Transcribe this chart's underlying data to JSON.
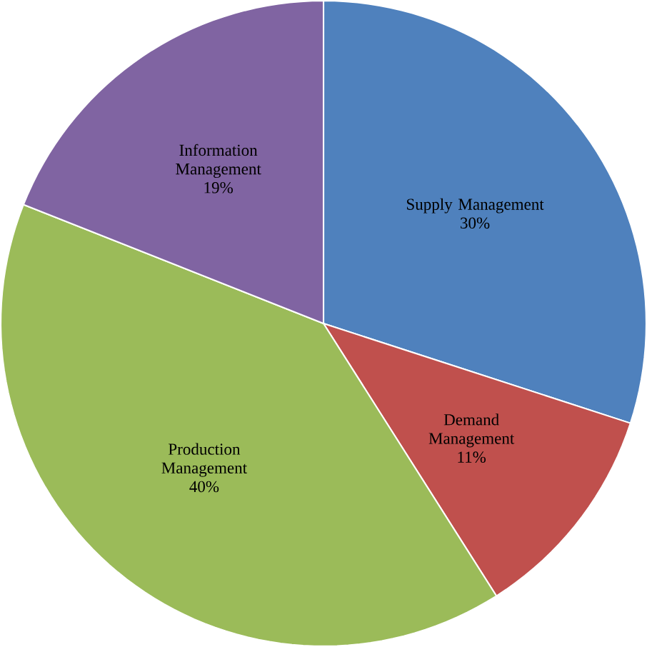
{
  "chart_data": {
    "type": "pie",
    "categories": [
      "Supply Management",
      "Demand Management",
      "Production Management",
      "Information Management"
    ],
    "values": [
      30,
      11,
      40,
      19
    ],
    "value_labels": [
      "30%",
      "11%",
      "40%",
      "19%"
    ],
    "colors": [
      "#4f81bd",
      "#c0504d",
      "#9bbb59",
      "#8064a2"
    ]
  }
}
